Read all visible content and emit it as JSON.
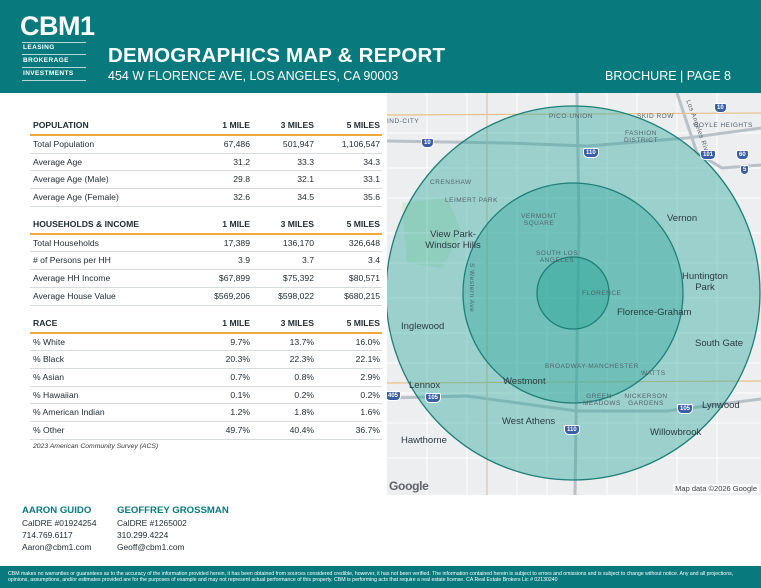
{
  "header": {
    "logo": "CBM1",
    "logo_lines": [
      "LEASING",
      "BROKERAGE",
      "INVESTMENTS"
    ],
    "title": "DEMOGRAPHICS MAP & REPORT",
    "address": "454 W FLORENCE AVE, LOS ANGELES, CA 90003",
    "page_label": "BROCHURE | PAGE 8"
  },
  "colors": {
    "brand": "#087a7e",
    "accent": "#f0a83a"
  },
  "tables": [
    {
      "headers": [
        "POPULATION",
        "1 MILE",
        "3 MILES",
        "5 MILES"
      ],
      "rows": [
        [
          "Total Population",
          "67,486",
          "501,947",
          "1,106,547"
        ],
        [
          "Average Age",
          "31.2",
          "33.3",
          "34.3"
        ],
        [
          "Average Age (Male)",
          "29.8",
          "32.1",
          "33.1"
        ],
        [
          "Average Age (Female)",
          "32.6",
          "34.5",
          "35.6"
        ]
      ]
    },
    {
      "headers": [
        "HOUSEHOLDS & INCOME",
        "1 MILE",
        "3 MILES",
        "5 MILES"
      ],
      "rows": [
        [
          "Total Households",
          "17,389",
          "136,170",
          "326,648"
        ],
        [
          "# of Persons per HH",
          "3.9",
          "3.7",
          "3.4"
        ],
        [
          "Average HH Income",
          "$67,899",
          "$75,392",
          "$80,571"
        ],
        [
          "Average House Value",
          "$569,206",
          "$598,022",
          "$680,215"
        ]
      ]
    },
    {
      "headers": [
        "RACE",
        "1 MILE",
        "3 MILES",
        "5 MILES"
      ],
      "rows": [
        [
          "% White",
          "9.7%",
          "13.7%",
          "16.0%"
        ],
        [
          "% Black",
          "20.3%",
          "22.3%",
          "22.1%"
        ],
        [
          "% Asian",
          "0.7%",
          "0.8%",
          "2.9%"
        ],
        [
          "% Hawaiian",
          "0.1%",
          "0.2%",
          "0.2%"
        ],
        [
          "% American Indian",
          "1.2%",
          "1.8%",
          "1.6%"
        ],
        [
          "% Other",
          "49.7%",
          "40.4%",
          "36.7%"
        ]
      ]
    }
  ],
  "source": "2023 American Community Survey (ACS)",
  "map": {
    "labels": {
      "ind_city": "IND-CITY",
      "pico_union": "PICO-UNION",
      "skid_row": "SKID ROW",
      "fashion_district": "FASHION DISTRICT",
      "boyle_heights": "BOYLE HEIGHTS",
      "crenshaw": "CRENSHAW",
      "leimert_park": "LEIMERT PARK",
      "vermont_square": "VERMONT SQUARE",
      "south_los_angeles": "SOUTH LOS ANGELES",
      "view_park": "View Park-Windsor Hills",
      "vernon": "Vernon",
      "huntington_park": "Huntington Park",
      "florence": "FLORENCE",
      "florence_graham": "Florence-Graham",
      "inglewood": "Inglewood",
      "south_gate": "South Gate",
      "broadway_manchester": "BROADWAY-MANCHESTER",
      "watts": "WATTS",
      "westmont": "Westmont",
      "lennox": "Lennox",
      "green_meadows": "GREEN MEADOWS",
      "nickerson_gardens": "NICKERSON GARDENS",
      "lynwood": "Lynwood",
      "west_athens": "West Athens",
      "willowbrook": "Willowbrook",
      "hawthorne": "Hawthorne",
      "s_western_ave": "S Western Ave",
      "los_angeles_river": "Los Angeles River"
    },
    "shields": [
      "10",
      "10",
      "110",
      "101",
      "60",
      "5",
      "405",
      "105",
      "105",
      "110"
    ],
    "google_logo": "Google",
    "attribution": "Map data ©2026 Google",
    "ring_color": "#2aa69a"
  },
  "contacts": [
    {
      "name": "AARON GUIDO",
      "dre": "CalDRE #01924254",
      "phone": "714.769.6117",
      "email": "Aaron@cbm1.com"
    },
    {
      "name": "GEOFFREY GROSSMAN",
      "dre": "CalDRE #1265002",
      "phone": "310.299.4224",
      "email": "Geoff@cbm1.com"
    }
  ],
  "disclaimer": "CBM makes no warranties or guarantees as to the accuracy of the information provided herein, it has been obtained from sources considered credible, however, it has not been verified. The information contained herein is subject to errors and omissions and is subject to change without notice. Any and all projections, opinions, assumptions, and/or estimates provided are for the purposes of example and may not represent actual performance of this property. CBM is performing acts that require a real estate license. CA Real Estate Brokers Lic # 02130240"
}
